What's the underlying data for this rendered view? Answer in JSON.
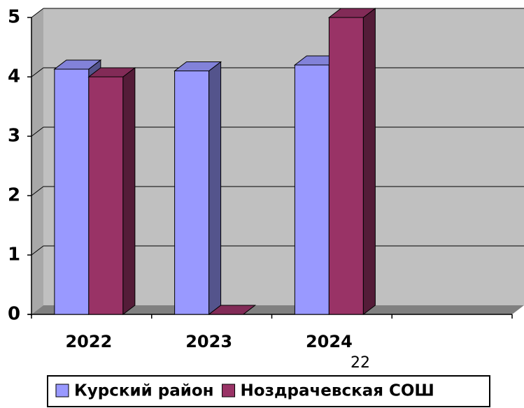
{
  "chart_data": {
    "type": "bar3d",
    "categories": [
      "2022",
      "2023",
      "2024",
      null
    ],
    "series": [
      {
        "name": "Курский район",
        "color": "#9999ff",
        "values": [
          4.13,
          4.1,
          4.2,
          null
        ]
      },
      {
        "name": "Ноздрачевская СОШ",
        "color": "#993366",
        "values": [
          4.0,
          0,
          5.0,
          null
        ]
      }
    ],
    "ylim": [
      0,
      5
    ],
    "yticks": [
      0,
      1,
      2,
      3,
      4,
      5
    ],
    "grid": true,
    "legend": "bottom",
    "annotation": "22"
  }
}
